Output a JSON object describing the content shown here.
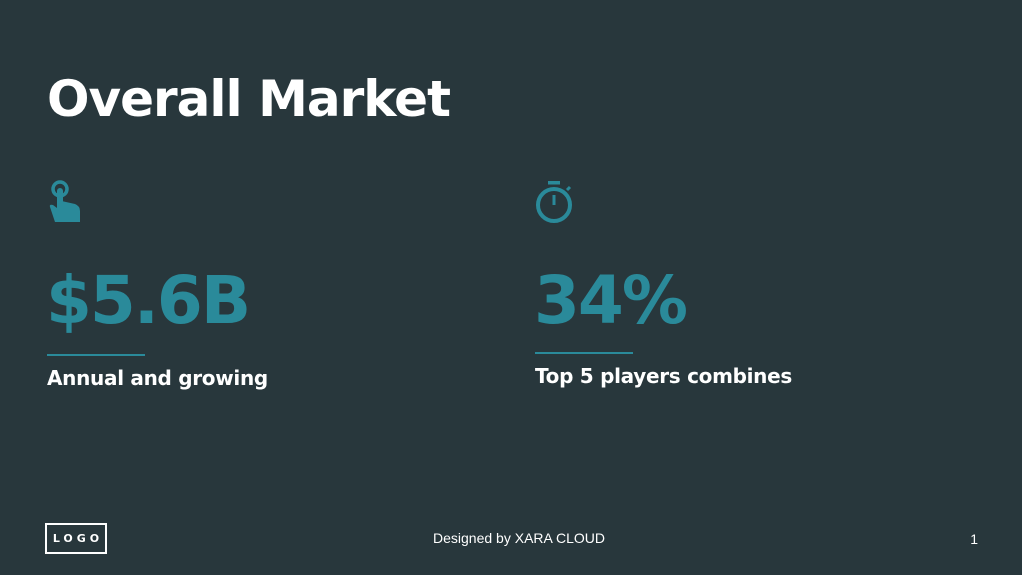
{
  "title": "Overall Market",
  "accent": "#2a8a9a",
  "background": "#28373c",
  "stats": [
    {
      "icon": "hand-pointer-icon",
      "value": "$5.6B",
      "label": "Annual and growing"
    },
    {
      "icon": "stopwatch-icon",
      "value": "34%",
      "label": "Top 5 players combines"
    }
  ],
  "footer": {
    "logo": "LOGO",
    "credit": "Designed by XARA CLOUD",
    "page_number": "1"
  }
}
